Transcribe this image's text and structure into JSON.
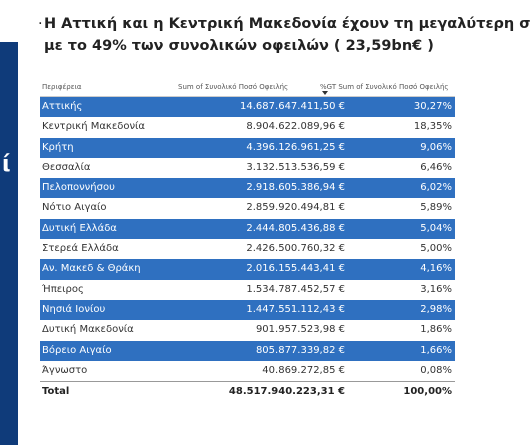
{
  "sidebar": {
    "glyph": "ί"
  },
  "header": {
    "title_line1": "Η Αττική και η Κεντρική Μακεδονία  έχουν τη μεγαλύτερη συγ",
    "title_line2": "με το 49% των συνολικών οφειλών ( 23,59bn€ )"
  },
  "table": {
    "columns": [
      "Περιφέρεια",
      "Sum of Συνολικό Ποσό Οφειλής",
      "%GT Sum of Συνολικό Ποσό Οφειλής"
    ],
    "rows": [
      [
        "Αττικής",
        "14.687.647.411,50 €",
        "30,27%"
      ],
      [
        "Κεντρική Μακεδονία",
        "8.904.622.089,96 €",
        "18,35%"
      ],
      [
        "Κρήτη",
        "4.396.126.961,25 €",
        "9,06%"
      ],
      [
        "Θεσσαλία",
        "3.132.513.536,59 €",
        "6,46%"
      ],
      [
        "Πελοποννήσου",
        "2.918.605.386,94 €",
        "6,02%"
      ],
      [
        "Νότιο Αιγαίο",
        "2.859.920.494,81 €",
        "5,89%"
      ],
      [
        "Δυτική Ελλάδα",
        "2.444.805.436,88 €",
        "5,04%"
      ],
      [
        "Στερεά Ελλάδα",
        "2.426.500.760,32 €",
        "5,00%"
      ],
      [
        "Αν. Μακεδ & Θράκη",
        "2.016.155.443,41 €",
        "4,16%"
      ],
      [
        "Ήπειρος",
        "1.534.787.452,57 €",
        "3,16%"
      ],
      [
        "Νησιά Ιονίου",
        "1.447.551.112,43 €",
        "2,98%"
      ],
      [
        "Δυτική Μακεδονία",
        "901.957.523,98 €",
        "1,86%"
      ],
      [
        "Βόρειο Αιγαίο",
        "805.877.339,82 €",
        "1,66%"
      ],
      [
        "Άγνωστο",
        "40.869.272,85 €",
        "0,08%"
      ]
    ],
    "total": [
      "Total",
      "48.517.940.223,31 €",
      "100,00%"
    ]
  }
}
